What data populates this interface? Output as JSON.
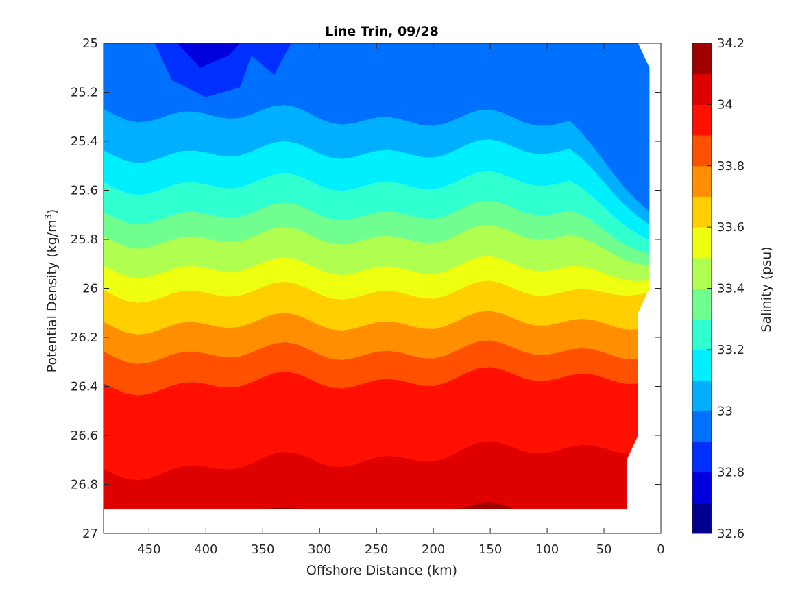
{
  "chart_data": {
    "type": "contour",
    "title": "Line Trin, 09/28",
    "xlabel": "Offshore Distance (km)",
    "ylabel": {
      "main": "Potential Density (kg/m",
      "sup": "3",
      "end": ")"
    },
    "colorbar_label": "Salinity (psu)",
    "xlim": [
      490,
      0
    ],
    "ylim": [
      25,
      27
    ],
    "y_reversed": true,
    "x_ticks": [
      450,
      400,
      350,
      300,
      250,
      200,
      150,
      100,
      50,
      0
    ],
    "x_tick_labels": [
      "450",
      "400",
      "350",
      "300",
      "250",
      "200",
      "150",
      "100",
      "50",
      "0"
    ],
    "y_ticks": [
      25,
      25.2,
      25.4,
      25.6,
      25.8,
      26,
      26.2,
      26.4,
      26.6,
      26.8,
      27
    ],
    "y_tick_labels": [
      "25",
      "25.2",
      "25.4",
      "25.6",
      "25.8",
      "26",
      "26.2",
      "26.4",
      "26.6",
      "26.8",
      "27"
    ],
    "colorbar_ticks": [
      32.6,
      32.8,
      33,
      33.2,
      33.4,
      33.6,
      33.8,
      34,
      34.2
    ],
    "colorbar_tick_labels": [
      "32.6",
      "32.8",
      "33",
      "33.2",
      "33.4",
      "33.6",
      "33.8",
      "34",
      "34.2"
    ],
    "levels": [
      32.6,
      32.7,
      32.8,
      32.9,
      33.0,
      33.1,
      33.2,
      33.3,
      33.4,
      33.5,
      33.6,
      33.7,
      33.8,
      33.9,
      34.0,
      34.1,
      34.2
    ],
    "level_colors": [
      "#00008f",
      "#0000df",
      "#0030ff",
      "#0070ff",
      "#00b0ff",
      "#00efff",
      "#30ffcf",
      "#70ff8f",
      "#b0ff50",
      "#efff10",
      "#ffcf00",
      "#ff8f00",
      "#ff5000",
      "#ff1000",
      "#df0000",
      "#9f0000"
    ],
    "data_extent": {
      "top_edge": [
        [
          490,
          25.0
        ],
        [
          20,
          25.0
        ],
        [
          10,
          25.1
        ],
        [
          10,
          26.0
        ],
        [
          20,
          26.1
        ],
        [
          20,
          26.6
        ],
        [
          30,
          26.7
        ],
        [
          30,
          26.9
        ],
        [
          490,
          26.9
        ]
      ]
    },
    "contours": [
      {
        "level": 33.9,
        "points": [
          [
            490,
            26.38
          ],
          [
            450,
            26.37
          ],
          [
            400,
            26.4
          ],
          [
            350,
            26.43
          ],
          [
            300,
            26.41
          ],
          [
            250,
            26.4
          ],
          [
            200,
            26.41
          ],
          [
            150,
            26.39
          ],
          [
            100,
            26.37
          ],
          [
            50,
            26.32
          ],
          [
            20,
            26.28
          ]
        ]
      },
      {
        "level": 34.0,
        "points": [
          [
            490,
            26.75
          ],
          [
            470,
            26.8
          ],
          [
            450,
            26.85
          ],
          [
            420,
            26.83
          ],
          [
            400,
            26.78
          ],
          [
            350,
            26.8
          ],
          [
            300,
            26.72
          ],
          [
            270,
            26.66
          ],
          [
            250,
            26.7
          ],
          [
            200,
            26.71
          ],
          [
            150,
            26.7
          ],
          [
            100,
            26.64
          ],
          [
            50,
            26.57
          ],
          [
            20,
            26.5
          ]
        ]
      },
      {
        "level": 34.1,
        "points": [
          [
            80,
            26.9
          ],
          [
            50,
            26.86
          ],
          [
            30,
            26.82
          ]
        ]
      }
    ],
    "labeled_bands": [
      {
        "label": "33.0",
        "approx_depth_at_490": 25.25
      },
      {
        "label": "33.6",
        "approx_depth_at_490": 25.96
      },
      {
        "label": "33.8",
        "approx_depth_at_490": 26.25
      }
    ]
  },
  "colors": {
    "axis": "#262626",
    "background": "#ffffff"
  }
}
